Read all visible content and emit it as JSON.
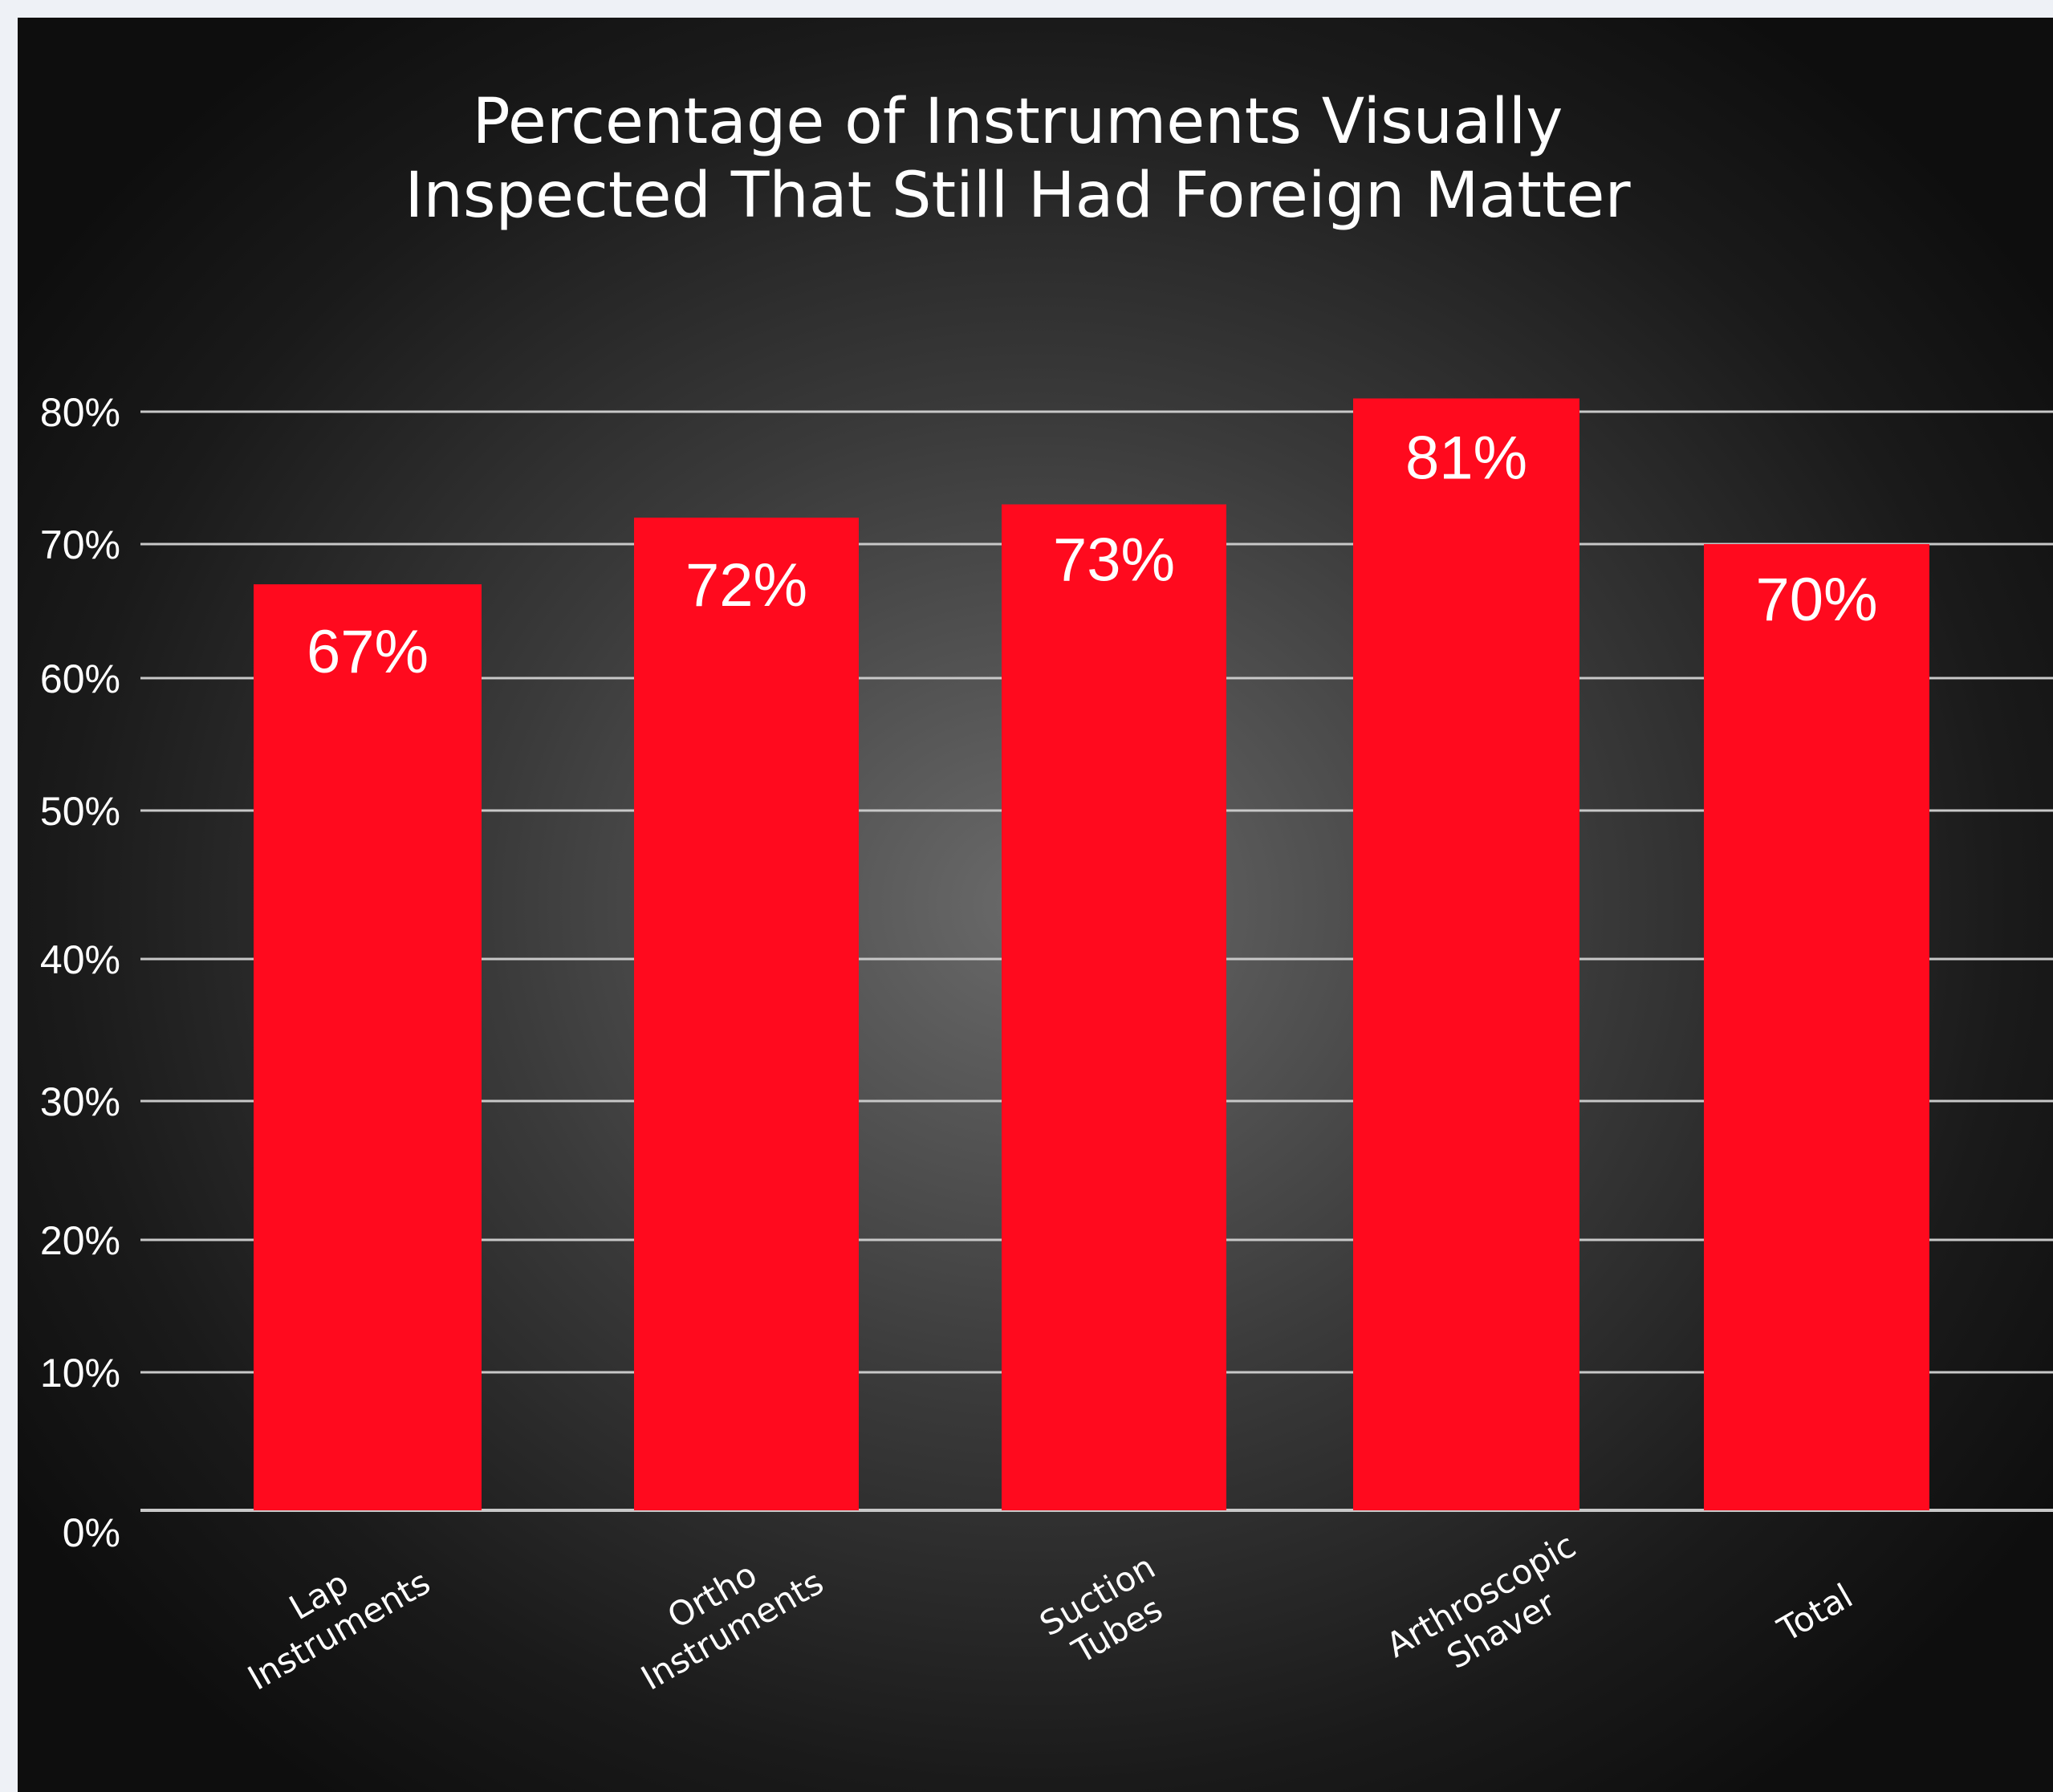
{
  "chart_data": {
    "type": "bar",
    "title": [
      "Percentage of Instruments Visually",
      "Inspected That Still Had Foreign Matter"
    ],
    "categories": [
      [
        "Lap",
        "Instruments"
      ],
      [
        "Ortho",
        "Instruments"
      ],
      [
        "Suction",
        "Tubes"
      ],
      [
        "Arthroscopic",
        "Shaver"
      ],
      [
        "Total"
      ]
    ],
    "values": [
      67,
      72,
      73,
      81,
      70
    ],
    "value_labels": [
      "67%",
      "72%",
      "73%",
      "81%",
      "70%"
    ],
    "y_ticks": [
      "0%",
      "10%",
      "20%",
      "30%",
      "40%",
      "50%",
      "60%",
      "70%",
      "80%"
    ],
    "ylim": [
      0,
      80
    ],
    "grid": true,
    "legend": "none",
    "colors": {
      "bar": "#ff0a1e",
      "grid": "#c8c8c8",
      "text": "#ffffff"
    }
  }
}
